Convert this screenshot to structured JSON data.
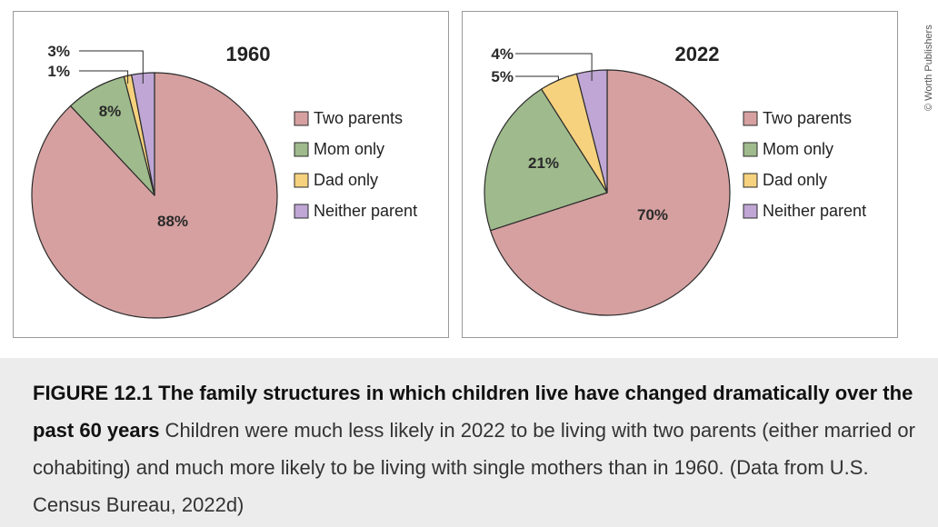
{
  "chart_data": [
    {
      "type": "pie",
      "title": "1960",
      "slices": [
        {
          "name": "Two parents",
          "value": 88,
          "label": "88%",
          "color": "#d6a0a0"
        },
        {
          "name": "Mom only",
          "value": 8,
          "label": "8%",
          "color": "#9fba8c"
        },
        {
          "name": "Dad only",
          "value": 1,
          "label": "1%",
          "color": "#f6d27e"
        },
        {
          "name": "Neither parent",
          "value": 3,
          "label": "3%",
          "color": "#bfa6d4"
        }
      ],
      "legend": [
        "Two parents",
        "Mom only",
        "Dad only",
        "Neither parent"
      ],
      "legend_position": "right"
    },
    {
      "type": "pie",
      "title": "2022",
      "slices": [
        {
          "name": "Two parents",
          "value": 70,
          "label": "70%",
          "color": "#d6a0a0"
        },
        {
          "name": "Mom only",
          "value": 21,
          "label": "21%",
          "color": "#9fba8c"
        },
        {
          "name": "Dad only",
          "value": 5,
          "label": "5%",
          "color": "#f6d27e"
        },
        {
          "name": "Neither parent",
          "value": 4,
          "label": "4%",
          "color": "#bfa6d4"
        }
      ],
      "legend": [
        "Two parents",
        "Mom only",
        "Dad only",
        "Neither parent"
      ],
      "legend_position": "right"
    }
  ],
  "credit": "© Worth Publishers",
  "caption": {
    "bold": "FIGURE 12.1 The family structures in which children live have changed dramatically over the past 60 years",
    "text": " Children were much less likely in 2022 to be living with two parents (either married or cohabiting) and much more likely to be living with single mothers than in 1960. (Data from U.S. Census Bureau, 2022d)"
  }
}
